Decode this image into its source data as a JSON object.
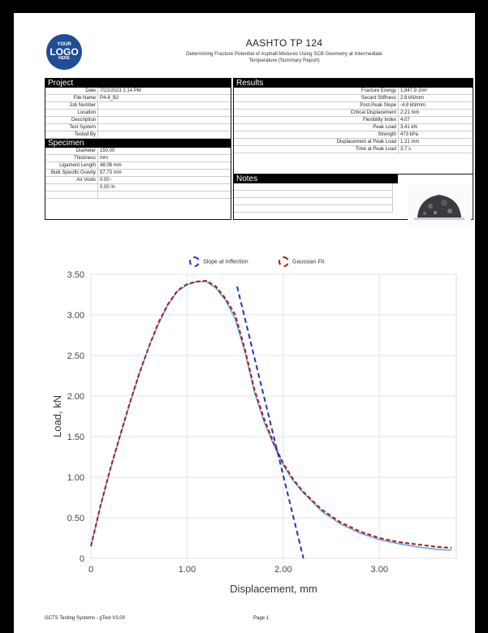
{
  "logo": {
    "line1": "YOUR",
    "line2": "LOGO",
    "line3": "HERE"
  },
  "header": {
    "title": "AASHTO TP 124",
    "subtitle_line1": "Determining Fracture Potential of Asphalt Mixtures Using SCB Geometry at Intermediate",
    "subtitle_line2": "Temperature (Summary Report)"
  },
  "project": {
    "heading": "Project",
    "rows": [
      {
        "label": "Date",
        "value": "7/22/2023 1:14 PM"
      },
      {
        "label": "File Name",
        "value": "P4-8_B2"
      },
      {
        "label": "Job Number",
        "value": ""
      },
      {
        "label": "Location",
        "value": ""
      },
      {
        "label": "Description",
        "value": ""
      },
      {
        "label": "Test System",
        "value": ""
      },
      {
        "label": "Tested By",
        "value": ""
      }
    ]
  },
  "specimen": {
    "heading": "Specimen",
    "rows": [
      {
        "label": "Diameter",
        "value": "150.00"
      },
      {
        "label": "Thickness",
        "value": "mm"
      },
      {
        "label": "Ligament Length",
        "value": "48.08 mm"
      },
      {
        "label": "Bulk Specific Gravity",
        "value": "57.73 mm"
      },
      {
        "label": "Air Voids",
        "value": "0.00 -"
      },
      {
        "label": "",
        "value": "0.00 %"
      },
      {
        "label": "",
        "value": ""
      }
    ]
  },
  "results": {
    "heading": "Results",
    "rows": [
      {
        "label": "Fracture Energy",
        "value": "1,947.9 J/m²"
      },
      {
        "label": "Secant Stiffness",
        "value": "2.8 kN/mm"
      },
      {
        "label": "Post-Peak Slope",
        "value": "-4.8 kN/mm"
      },
      {
        "label": "Critical Displacement",
        "value": "2.21 mm"
      },
      {
        "label": "Flexibility Index",
        "value": "4.07"
      },
      {
        "label": "Peak Load",
        "value": "3.41 kN"
      },
      {
        "label": "Strength",
        "value": "473 kPa"
      },
      {
        "label": "Displacement at Peak Load",
        "value": "1.21 mm"
      },
      {
        "label": "Time at Peak Load",
        "value": "3.7 s"
      }
    ]
  },
  "notes": {
    "heading": "Notes"
  },
  "footer": {
    "left": "GCTS Testing Systems - gTest V3.00",
    "page": "Page 1"
  },
  "colors": {
    "inflection": "#2233cc",
    "gaussian": "#b01818",
    "measured": "#5aa7e0"
  },
  "chart_data": {
    "type": "line",
    "xlabel": "Displacement, mm",
    "ylabel": "Load, kN",
    "xlim": [
      0,
      3.8
    ],
    "ylim": [
      0,
      3.5
    ],
    "xticks": [
      "0",
      "1.00",
      "2.00",
      "3.00"
    ],
    "xtick_values": [
      0,
      1,
      2,
      3
    ],
    "yticks": [
      "0",
      "0.50",
      "1.00",
      "1.50",
      "2.00",
      "2.50",
      "3.00",
      "3.50"
    ],
    "ytick_values": [
      0,
      0.5,
      1,
      1.5,
      2,
      2.5,
      3,
      3.5
    ],
    "grid": true,
    "legend_position": "top",
    "series": [
      {
        "name": "Slope at Inflection",
        "style": "dashed",
        "x": [
          1.52,
          2.21
        ],
        "y": [
          3.35,
          0.0
        ]
      },
      {
        "name": "Gaussian Fit",
        "style": "dashed",
        "x": [
          0,
          0.1,
          0.2,
          0.3,
          0.4,
          0.5,
          0.6,
          0.7,
          0.8,
          0.9,
          1.0,
          1.1,
          1.2,
          1.3,
          1.4,
          1.5,
          1.6,
          1.7,
          1.8,
          1.9,
          2.0,
          2.1,
          2.2,
          2.4,
          2.6,
          2.8,
          3.0,
          3.2,
          3.4,
          3.6,
          3.75
        ],
        "y": [
          0.15,
          0.65,
          1.1,
          1.5,
          1.9,
          2.27,
          2.6,
          2.9,
          3.13,
          3.3,
          3.38,
          3.41,
          3.42,
          3.35,
          3.2,
          3.0,
          2.58,
          2.08,
          1.72,
          1.42,
          1.17,
          0.98,
          0.83,
          0.6,
          0.44,
          0.33,
          0.25,
          0.2,
          0.17,
          0.14,
          0.13
        ]
      },
      {
        "name": "",
        "x": [
          0,
          0.1,
          0.2,
          0.3,
          0.4,
          0.5,
          0.6,
          0.7,
          0.8,
          0.9,
          1.0,
          1.1,
          1.2,
          1.3,
          1.4,
          1.5,
          1.6,
          1.7,
          1.8,
          1.9,
          2.0,
          2.1,
          2.2,
          2.4,
          2.6,
          2.8,
          3.0,
          3.2,
          3.4,
          3.6,
          3.75
        ],
        "y": [
          0.15,
          0.64,
          1.09,
          1.49,
          1.89,
          2.26,
          2.6,
          2.88,
          3.12,
          3.29,
          3.37,
          3.41,
          3.41,
          3.33,
          3.18,
          2.95,
          2.55,
          2.05,
          1.68,
          1.4,
          1.15,
          0.96,
          0.82,
          0.58,
          0.42,
          0.31,
          0.23,
          0.18,
          0.14,
          0.11,
          0.1
        ]
      }
    ]
  }
}
